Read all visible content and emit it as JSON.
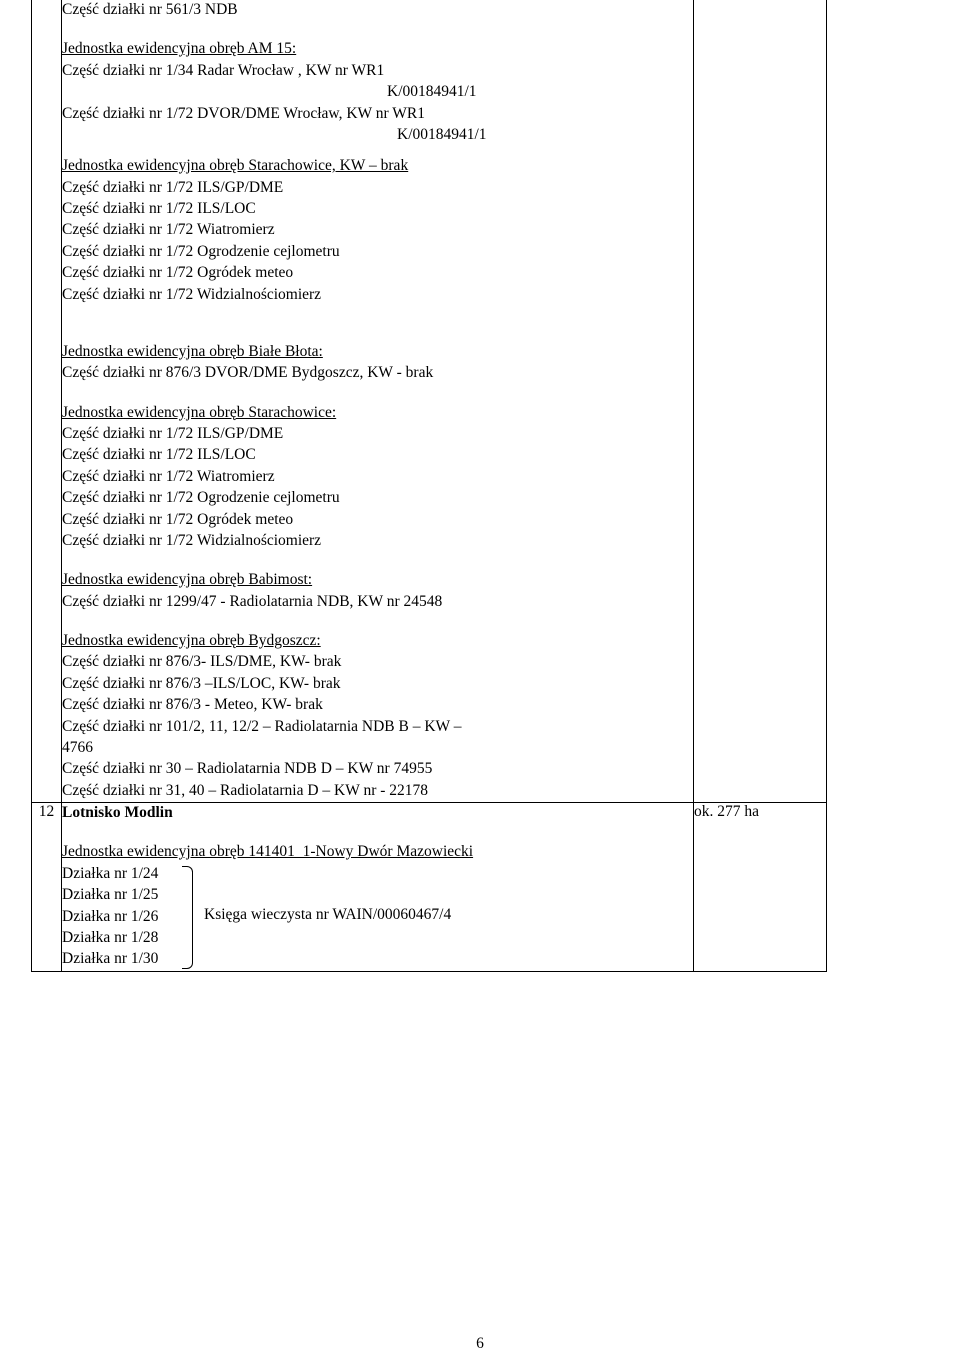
{
  "page_number": "6",
  "rows": [
    {
      "idx": "",
      "right": "",
      "lines": [
        {
          "text": "Część działki nr 561/3  NDB"
        },
        {
          "blank": true
        },
        {
          "text": "Jednostka ewidencyjna obręb AM 15:",
          "underline": true
        },
        {
          "text": "Część działki nr 1/34 Radar Wrocław ,  KW nr WR1"
        },
        {
          "text": "K/00184941/1",
          "indent": 325
        },
        {
          "text": "Część działki nr 1/72 DVOR/DME Wrocław, KW nr WR1"
        },
        {
          "text": "K/00184941/1",
          "indent": 335
        },
        {
          "halfblank": true
        },
        {
          "text": "Jednostka ewidencyjna obręb Starachowice, KW – brak",
          "underline": true
        },
        {
          "text": "Część działki nr 1/72 ILS/GP/DME"
        },
        {
          "text": "Część działki nr 1/72  ILS/LOC"
        },
        {
          "text": "Część działki nr 1/72 Wiatromierz"
        },
        {
          "text": "Część działki nr 1/72  Ogrodzenie cejlometru"
        },
        {
          "text": "Część działki nr  1/72 Ogródek meteo"
        },
        {
          "text": "Część działki nr  1/72 Widzialnościomierz"
        },
        {
          "blank": true
        },
        {
          "blank": true
        },
        {
          "text": "Jednostka ewidencyjna obręb Białe Błota:",
          "underline": true
        },
        {
          "text": "Część działki nr 876/3  DVOR/DME Bydgoszcz, KW - brak"
        },
        {
          "blank": true
        },
        {
          "text": "Jednostka ewidencyjna obręb Starachowice:",
          "underline": true
        },
        {
          "text": "Część działki nr 1/72 ILS/GP/DME"
        },
        {
          "text": "Część działki nr 1/72 ILS/LOC"
        },
        {
          "text": "Część działki nr 1/72 Wiatromierz"
        },
        {
          "text": "Część działki nr 1/72 Ogrodzenie cejlometru"
        },
        {
          "text": "Część działki nr 1/72 Ogródek meteo"
        },
        {
          "text": "Część działki nr 1/72 Widzialnościomierz"
        },
        {
          "blank": true
        },
        {
          "text": "Jednostka ewidencyjna obręb Babimost:",
          "underline": true
        },
        {
          "text": "Część działki nr 1299/47  - Radiolatarnia NDB,  KW nr 24548"
        },
        {
          "blank": true
        },
        {
          "text": "Jednostka ewidencyjna obręb Bydgoszcz:",
          "underline": true
        },
        {
          "text": "Część działki nr 876/3- ILS/DME,  KW- brak"
        },
        {
          "text": "Część działki nr 876/3 –ILS/LOC,   KW- brak"
        },
        {
          "text": "Część działki nr 876/3  - Meteo,  KW- brak"
        },
        {
          "text": "Część działki nr 101/2, 11, 12/2 – Radiolatarnia NDB   B – KW –"
        },
        {
          "text": "4766"
        },
        {
          "text": "Część działki nr 30 – Radiolatarnia NDB D – KW nr 74955"
        },
        {
          "text": "Część działki nr 31, 40 – Radiolatarnia  D – KW  nr - 22178"
        }
      ]
    },
    {
      "idx": "12",
      "right": "ok. 277 ha",
      "title": "Lotnisko Modlin",
      "jedn": "Jednostka ewidencyjna obręb 141401_1-Nowy Dwór Mazowiecki",
      "dzialki": [
        "Działka nr  1/24",
        "Działka nr  1/25",
        "Działka nr  1/26",
        "Działka nr  1/28",
        "Działka nr  1/30"
      ],
      "brace_label": "Księga wieczysta nr WAIN/00060467/4"
    }
  ]
}
